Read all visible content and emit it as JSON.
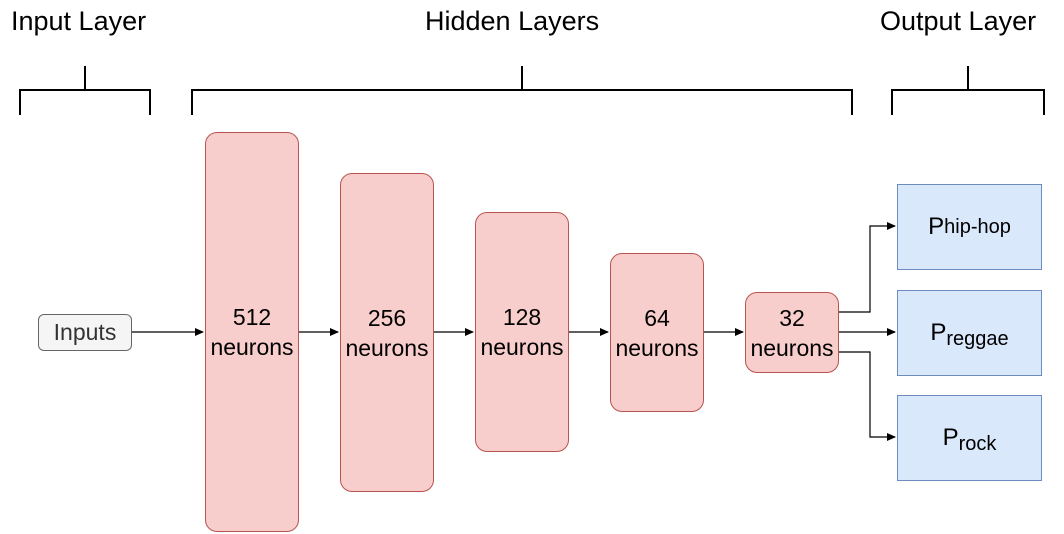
{
  "labels": {
    "input": "Input Layer",
    "hidden": "Hidden Layers",
    "output": "Output Layer"
  },
  "inputs": "Inputs",
  "layers": [
    {
      "count": "512",
      "unit": "neurons"
    },
    {
      "count": "256",
      "unit": "neurons"
    },
    {
      "count": "128",
      "unit": "neurons"
    },
    {
      "count": "64",
      "unit": "neurons"
    },
    {
      "count": "32",
      "unit": "neurons"
    }
  ],
  "outputs": [
    {
      "symbol": "P",
      "subscript": "hip-hop"
    },
    {
      "symbol": "P",
      "subscript": "reggae"
    },
    {
      "symbol": "P",
      "subscript": "rock"
    }
  ],
  "colors": {
    "hidden_fill": "#f8cecc",
    "hidden_stroke": "#b85450",
    "output_fill": "#dae8fc",
    "output_stroke": "#6c8ebf",
    "input_fill": "#f5f5f5"
  }
}
